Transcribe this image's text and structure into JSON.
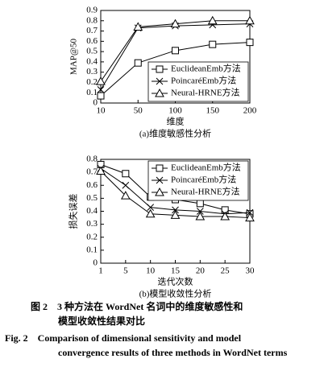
{
  "chart_data": [
    {
      "type": "line",
      "subtitle": "(a)维度敏感性分析",
      "xlabel": "维度",
      "ylabel": "MAP@50",
      "categories": [
        "10",
        "50",
        "100",
        "150",
        "200"
      ],
      "ylim": [
        0,
        0.9
      ],
      "yticks": [
        0,
        0.1,
        0.2,
        0.3,
        0.4,
        0.5,
        0.6,
        0.7,
        0.8,
        0.9
      ],
      "legend": "lower right",
      "series": [
        {
          "name": "EuclideanEmb方法",
          "color": "#000000",
          "marker": "square",
          "values": [
            0.07,
            0.39,
            0.51,
            0.57,
            0.59
          ]
        },
        {
          "name": "PoincaréEmb方法",
          "color": "#000000",
          "marker": "x",
          "values": [
            0.13,
            0.73,
            0.75,
            0.76,
            0.77
          ]
        },
        {
          "name": "Neural-HRNE方法",
          "color": "#000000",
          "marker": "triangle",
          "values": [
            0.21,
            0.74,
            0.77,
            0.8,
            0.8
          ]
        }
      ]
    },
    {
      "type": "line",
      "subtitle": "(b)模型收敛性分析",
      "xlabel": "迭代次数",
      "ylabel": "损失误差",
      "categories": [
        "1",
        "5",
        "10",
        "15",
        "20",
        "25",
        "30"
      ],
      "ylim": [
        0,
        0.8
      ],
      "yticks": [
        0,
        0.1,
        0.2,
        0.3,
        0.4,
        0.5,
        0.6,
        0.7,
        0.8
      ],
      "legend": "upper right",
      "series": [
        {
          "name": "EuclideanEmb方法",
          "color": "#000000",
          "marker": "square",
          "values": [
            0.76,
            0.69,
            0.51,
            0.49,
            0.46,
            0.41,
            0.38
          ]
        },
        {
          "name": "PoincaréEmb方法",
          "color": "#000000",
          "marker": "x",
          "values": [
            0.73,
            0.6,
            0.43,
            0.41,
            0.4,
            0.38,
            0.39
          ]
        },
        {
          "name": "Neural-HRNE方法",
          "color": "#000000",
          "marker": "triangle",
          "values": [
            0.71,
            0.52,
            0.38,
            0.37,
            0.36,
            0.36,
            0.35
          ]
        }
      ]
    }
  ],
  "caption": [
    "图 2　3 种方法在 WordNet 名词中的维度敏感性和",
    "模型收敛性结果对比",
    "Fig. 2　Comparison of dimensional sensitivity and model",
    "convergence results of three methods in WordNet terms"
  ]
}
